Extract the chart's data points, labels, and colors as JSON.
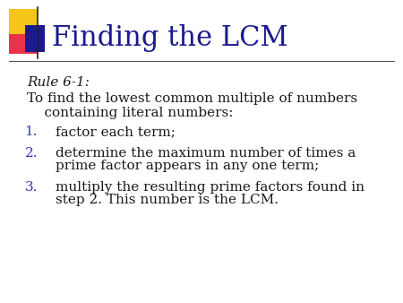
{
  "title": "Finding the LCM",
  "title_color": "#1a1a8c",
  "title_fontsize": 22,
  "rule_label": "Rule 6-1:",
  "intro_line1": "To find the lowest common multiple of numbers",
  "intro_line2": "    containing literal numbers:",
  "items": [
    [
      "factor each term;"
    ],
    [
      "determine the maximum number of times a",
      "prime factor appears in any one term;"
    ],
    [
      "multiply the resulting prime factors found in",
      "step 2. This number is the LCM."
    ]
  ],
  "number_color": "#3333bb",
  "text_color": "#1a1a1a",
  "bg_color": "#ffffff",
  "body_fontsize": 11,
  "rule_fontsize": 11,
  "separator_color": "#555555",
  "icon_yellow": "#f5c518",
  "icon_red": "#e8334a",
  "icon_blue": "#1a1a8c"
}
